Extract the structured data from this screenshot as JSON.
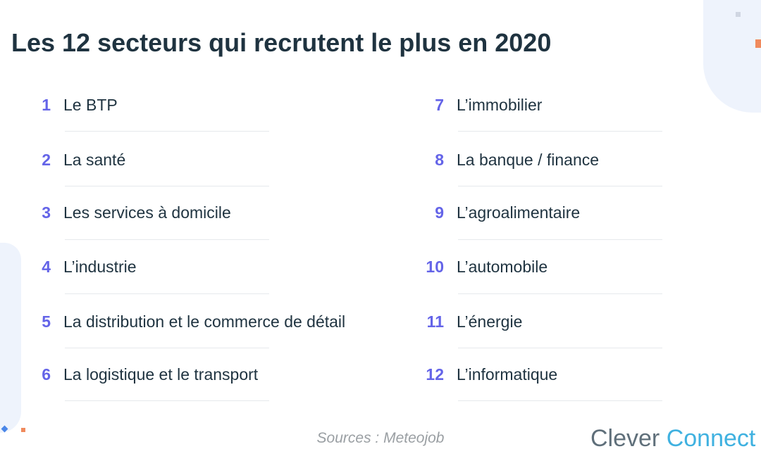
{
  "title": "Les 12 secteurs qui recrutent le plus en 2020",
  "accent_color": "#6464e8",
  "left_items": [
    {
      "num": "1",
      "label": "Le BTP"
    },
    {
      "num": "2",
      "label": "La santé"
    },
    {
      "num": "3",
      "label": "Les services à domicile"
    },
    {
      "num": "4",
      "label": "L’industrie"
    },
    {
      "num": "5",
      "label": "La distribution et le commerce de détail"
    },
    {
      "num": "6",
      "label": "La logistique et le transport"
    }
  ],
  "right_items": [
    {
      "num": "7",
      "label": "L’immobilier"
    },
    {
      "num": "8",
      "label": "La banque / finance"
    },
    {
      "num": "9",
      "label": "L’agroalimentaire"
    },
    {
      "num": "10",
      "label": "L’automobile"
    },
    {
      "num": "11",
      "label": "L’énergie"
    },
    {
      "num": "12",
      "label": "L’informatique"
    }
  ],
  "sources": "Sources : Meteojob",
  "logo": {
    "part1": "Clever",
    "part2": "Connect"
  }
}
